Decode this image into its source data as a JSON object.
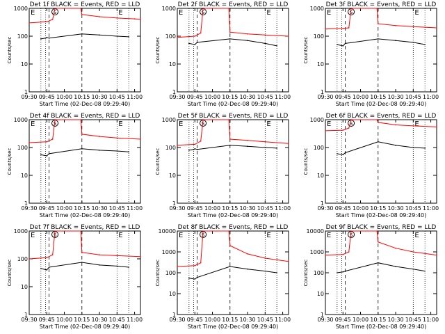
{
  "figure": {
    "xlabel": "Start Time (02-Dec-08 09:29:40)",
    "ylabel": "Counts/sec",
    "x_ticks": [
      "09:30",
      "09:45",
      "10:00",
      "10:15",
      "10:30",
      "10:45",
      "11:00"
    ],
    "y_ticks_small": [
      "1",
      "10",
      "100",
      "1000"
    ],
    "y_ticks_large": [
      "1",
      "10",
      "100",
      "1000",
      "10000"
    ],
    "marker_S": "S",
    "marker_E": "E",
    "colors": {
      "events": "#000000",
      "lld": "#ff0000",
      "axes": "#000000"
    }
  },
  "chart_data": [
    {
      "type": "line",
      "title": "Det 1f BLACK = Events, RED = LLD",
      "yscale": "log",
      "ylim": [
        1,
        1000
      ],
      "xlim": [
        "09:30",
        "11:05"
      ],
      "series": [
        {
          "name": "BLACK = Events",
          "x": [
            "09:40",
            "09:44",
            "09:45",
            "09:47",
            "10:15",
            "10:30",
            "10:45",
            "10:55"
          ],
          "y": [
            80,
            85,
            90,
            85,
            120,
            110,
            100,
            95
          ]
        },
        {
          "name": "RED = LLD",
          "x": [
            "09:30",
            "09:45",
            "09:50",
            "09:52",
            "10:14",
            "10:15",
            "10:30",
            "10:45",
            "11:00",
            "11:05"
          ],
          "y": [
            300,
            330,
            400,
            1000,
            1000,
            600,
            500,
            450,
            420,
            400
          ]
        }
      ]
    },
    {
      "type": "line",
      "title": "Det 2f BLACK = Events, RED = LLD",
      "yscale": "log",
      "ylim": [
        1,
        1000
      ],
      "xlim": [
        "09:30",
        "11:05"
      ],
      "series": [
        {
          "name": "BLACK = Events",
          "x": [
            "09:40",
            "09:45",
            "09:47",
            "10:15",
            "10:30",
            "10:45",
            "10:55"
          ],
          "y": [
            55,
            50,
            60,
            80,
            70,
            55,
            45
          ]
        },
        {
          "name": "RED = LLD",
          "x": [
            "09:30",
            "09:45",
            "09:50",
            "09:52",
            "10:14",
            "10:15",
            "10:30",
            "10:45",
            "11:05"
          ],
          "y": [
            90,
            100,
            130,
            1000,
            1000,
            140,
            120,
            110,
            100
          ]
        }
      ]
    },
    {
      "type": "line",
      "title": "Det 3f BLACK = Events, RED = LLD",
      "yscale": "log",
      "ylim": [
        1,
        1000
      ],
      "xlim": [
        "09:30",
        "11:05"
      ],
      "series": [
        {
          "name": "BLACK = Events",
          "x": [
            "09:40",
            "09:45",
            "09:47",
            "10:15",
            "10:30",
            "10:45",
            "10:55"
          ],
          "y": [
            50,
            45,
            55,
            80,
            70,
            60,
            50
          ]
        },
        {
          "name": "RED = LLD",
          "x": [
            "09:30",
            "09:45",
            "09:50",
            "09:52",
            "10:14",
            "10:15",
            "10:30",
            "10:45",
            "11:05"
          ],
          "y": [
            180,
            190,
            200,
            1000,
            1000,
            280,
            240,
            220,
            200
          ]
        }
      ]
    },
    {
      "type": "line",
      "title": "Det 4f BLACK = Events, RED = LLD",
      "yscale": "log",
      "ylim": [
        1,
        1000
      ],
      "xlim": [
        "09:30",
        "11:05"
      ],
      "series": [
        {
          "name": "BLACK = Events",
          "x": [
            "09:40",
            "09:45",
            "09:47",
            "10:15",
            "10:30",
            "10:45",
            "10:55"
          ],
          "y": [
            55,
            50,
            60,
            90,
            80,
            75,
            70
          ]
        },
        {
          "name": "RED = LLD",
          "x": [
            "09:30",
            "09:45",
            "09:50",
            "09:52",
            "10:14",
            "10:15",
            "10:30",
            "10:45",
            "11:05"
          ],
          "y": [
            150,
            160,
            200,
            1000,
            1000,
            300,
            250,
            220,
            200
          ]
        }
      ]
    },
    {
      "type": "line",
      "title": "Det 5f BLACK = Events, RED = LLD",
      "yscale": "log",
      "ylim": [
        1,
        1000
      ],
      "xlim": [
        "09:30",
        "11:05"
      ],
      "series": [
        {
          "name": "BLACK = Events",
          "x": [
            "09:40",
            "09:44",
            "09:45",
            "09:47",
            "10:15",
            "10:30",
            "10:45",
            "10:55"
          ],
          "y": [
            80,
            85,
            90,
            85,
            120,
            110,
            100,
            95
          ]
        },
        {
          "name": "RED = LLD",
          "x": [
            "09:30",
            "09:45",
            "09:50",
            "09:52",
            "10:14",
            "10:15",
            "10:30",
            "10:45",
            "11:05"
          ],
          "y": [
            120,
            130,
            170,
            1000,
            1000,
            200,
            180,
            160,
            140
          ]
        }
      ]
    },
    {
      "type": "line",
      "title": "Det 6f BLACK = Events, RED = LLD",
      "yscale": "log",
      "ylim": [
        1,
        1000
      ],
      "xlim": [
        "09:30",
        "11:05"
      ],
      "series": [
        {
          "name": "BLACK = Events",
          "x": [
            "09:40",
            "09:45",
            "09:47",
            "10:15",
            "10:30",
            "10:45",
            "10:55"
          ],
          "y": [
            60,
            55,
            65,
            160,
            120,
            100,
            95
          ]
        },
        {
          "name": "RED = LLD",
          "x": [
            "09:30",
            "09:45",
            "09:50",
            "09:52",
            "10:14",
            "10:15",
            "10:30",
            "10:45",
            "11:05"
          ],
          "y": [
            400,
            420,
            500,
            1000,
            1000,
            800,
            650,
            600,
            550
          ]
        }
      ]
    },
    {
      "type": "line",
      "title": "Det 7f BLACK = Events, RED = LLD",
      "yscale": "log",
      "ylim": [
        1,
        1000
      ],
      "xlim": [
        "09:30",
        "11:05"
      ],
      "series": [
        {
          "name": "BLACK = Events",
          "x": [
            "09:40",
            "09:45",
            "09:47",
            "10:15",
            "10:30",
            "10:45",
            "10:55"
          ],
          "y": [
            45,
            40,
            50,
            75,
            60,
            55,
            50
          ]
        },
        {
          "name": "RED = LLD",
          "x": [
            "09:30",
            "09:45",
            "09:50",
            "09:52",
            "10:14",
            "10:15",
            "10:30",
            "10:45",
            "11:05"
          ],
          "y": [
            100,
            110,
            140,
            1000,
            1000,
            170,
            140,
            130,
            120
          ]
        }
      ]
    },
    {
      "type": "line",
      "title": "Det 8f BLACK = Events, RED = LLD",
      "yscale": "log",
      "ylim": [
        1,
        10000
      ],
      "xlim": [
        "09:30",
        "11:05"
      ],
      "series": [
        {
          "name": "BLACK = Events",
          "x": [
            "09:40",
            "09:45",
            "09:47",
            "10:15",
            "10:30",
            "10:45",
            "10:55"
          ],
          "y": [
            55,
            50,
            60,
            200,
            150,
            120,
            100
          ]
        },
        {
          "name": "RED = LLD",
          "x": [
            "09:30",
            "09:45",
            "09:50",
            "09:52",
            "10:14",
            "10:15",
            "10:30",
            "10:45",
            "11:05"
          ],
          "y": [
            200,
            220,
            300,
            10000,
            10000,
            2000,
            800,
            500,
            350
          ]
        }
      ]
    },
    {
      "type": "line",
      "title": "Det 9f BLACK = Events, RED = LLD",
      "yscale": "log",
      "ylim": [
        1,
        10000
      ],
      "xlim": [
        "09:30",
        "11:05"
      ],
      "series": [
        {
          "name": "BLACK = Events",
          "x": [
            "09:40",
            "09:45",
            "09:47",
            "10:15",
            "10:30",
            "10:45",
            "10:55"
          ],
          "y": [
            100,
            110,
            120,
            300,
            200,
            150,
            120
          ]
        },
        {
          "name": "RED = LLD",
          "x": [
            "09:30",
            "09:45",
            "09:50",
            "09:52",
            "10:14",
            "10:15",
            "10:30",
            "10:45",
            "11:05"
          ],
          "y": [
            700,
            750,
            1000,
            10000,
            10000,
            3000,
            1500,
            1000,
            700
          ]
        }
      ]
    }
  ]
}
